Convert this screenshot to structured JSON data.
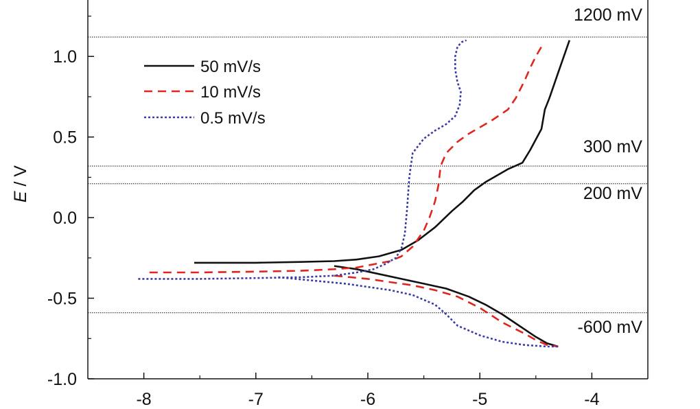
{
  "chart_data": {
    "type": "line",
    "title": "",
    "xlabel": "",
    "ylabel_var": "E",
    "ylabel_unit": " / V",
    "xlim": [
      -8.5,
      -3.5
    ],
    "ylim": [
      -1.0,
      1.35
    ],
    "x_ticks": [
      -8,
      -7,
      -6,
      -5,
      -4
    ],
    "x_tick_labels": [
      "-8",
      "-7",
      "-6",
      "-5",
      "-4"
    ],
    "y_ticks": [
      -1.0,
      -0.5,
      0.0,
      0.5,
      1.0
    ],
    "y_tick_labels": [
      "-1.0",
      "-0.5",
      "0.0",
      "0.5",
      "1.0"
    ],
    "legend_position": "top-left",
    "reference_lines": [
      {
        "y": 1.12,
        "label": "1200 mV"
      },
      {
        "y": 0.32,
        "label": "300 mV"
      },
      {
        "y": 0.21,
        "label": "200 mV"
      },
      {
        "y": -0.59,
        "label": "-600 mV"
      }
    ],
    "series": [
      {
        "name": "50 mV/s",
        "color": "#111111",
        "style": "solid",
        "anodic": {
          "x": [
            -7.55,
            -7.0,
            -6.6,
            -6.3,
            -6.1,
            -5.9,
            -5.7,
            -5.55,
            -5.4,
            -5.25,
            -5.15,
            -5.05,
            -4.95,
            -4.85,
            -4.75,
            -4.62,
            -4.55,
            -4.45,
            -4.42,
            -4.38,
            -4.35,
            -4.3,
            -4.25,
            -4.2
          ],
          "y": [
            -0.28,
            -0.28,
            -0.275,
            -0.27,
            -0.26,
            -0.24,
            -0.2,
            -0.14,
            -0.06,
            0.04,
            0.1,
            0.17,
            0.22,
            0.26,
            0.3,
            0.34,
            0.42,
            0.55,
            0.67,
            0.74,
            0.8,
            0.9,
            1.0,
            1.1
          ]
        },
        "cathodic": {
          "x": [
            -6.3,
            -6.1,
            -5.9,
            -5.7,
            -5.5,
            -5.3,
            -5.1,
            -4.95,
            -4.8,
            -4.65,
            -4.5,
            -4.4,
            -4.3
          ],
          "y": [
            -0.3,
            -0.32,
            -0.35,
            -0.38,
            -0.41,
            -0.44,
            -0.49,
            -0.54,
            -0.6,
            -0.67,
            -0.74,
            -0.78,
            -0.8
          ]
        }
      },
      {
        "name": "10 mV/s",
        "color": "#e0251f",
        "style": "dashed",
        "anodic": {
          "x": [
            -7.95,
            -7.5,
            -7.0,
            -6.6,
            -6.3,
            -6.1,
            -5.95,
            -5.8,
            -5.7,
            -5.6,
            -5.5,
            -5.45,
            -5.4,
            -5.37,
            -5.35,
            -5.3,
            -5.2,
            -5.1,
            -5.0,
            -4.9,
            -4.75,
            -4.68,
            -4.6,
            -4.55,
            -4.5,
            -4.45
          ],
          "y": [
            -0.34,
            -0.34,
            -0.335,
            -0.33,
            -0.32,
            -0.31,
            -0.29,
            -0.27,
            -0.24,
            -0.18,
            -0.08,
            0.0,
            0.1,
            0.2,
            0.32,
            0.4,
            0.47,
            0.52,
            0.56,
            0.6,
            0.67,
            0.74,
            0.85,
            0.93,
            1.0,
            1.06
          ]
        },
        "cathodic": {
          "x": [
            -6.3,
            -6.0,
            -5.8,
            -5.6,
            -5.4,
            -5.2,
            -5.0,
            -4.8,
            -4.6,
            -4.5,
            -4.4,
            -4.3
          ],
          "y": [
            -0.36,
            -0.38,
            -0.4,
            -0.42,
            -0.45,
            -0.49,
            -0.56,
            -0.65,
            -0.72,
            -0.76,
            -0.79,
            -0.8
          ]
        }
      },
      {
        "name": "0.5 mV/s",
        "color": "#3a3aa8",
        "style": "dotted",
        "anodic": {
          "x": [
            -8.05,
            -7.5,
            -7.0,
            -6.6,
            -6.3,
            -6.1,
            -5.95,
            -5.85,
            -5.75,
            -5.7,
            -5.67,
            -5.65,
            -5.63,
            -5.6,
            -5.5,
            -5.4,
            -5.3,
            -5.22,
            -5.18,
            -5.17,
            -5.2,
            -5.22,
            -5.22,
            -5.2,
            -5.16,
            -5.12
          ],
          "y": [
            -0.38,
            -0.38,
            -0.375,
            -0.37,
            -0.36,
            -0.34,
            -0.32,
            -0.29,
            -0.25,
            -0.19,
            -0.1,
            0.05,
            0.25,
            0.4,
            0.49,
            0.54,
            0.58,
            0.63,
            0.7,
            0.78,
            0.84,
            0.92,
            1.0,
            1.06,
            1.09,
            1.1
          ]
        },
        "cathodic": {
          "x": [
            -6.8,
            -6.5,
            -6.2,
            -6.0,
            -5.8,
            -5.6,
            -5.4,
            -5.3,
            -5.2,
            -5.0,
            -4.8,
            -4.6,
            -4.4,
            -4.3
          ],
          "y": [
            -0.37,
            -0.39,
            -0.41,
            -0.43,
            -0.45,
            -0.48,
            -0.54,
            -0.6,
            -0.67,
            -0.73,
            -0.77,
            -0.79,
            -0.8,
            -0.8
          ]
        }
      }
    ]
  }
}
